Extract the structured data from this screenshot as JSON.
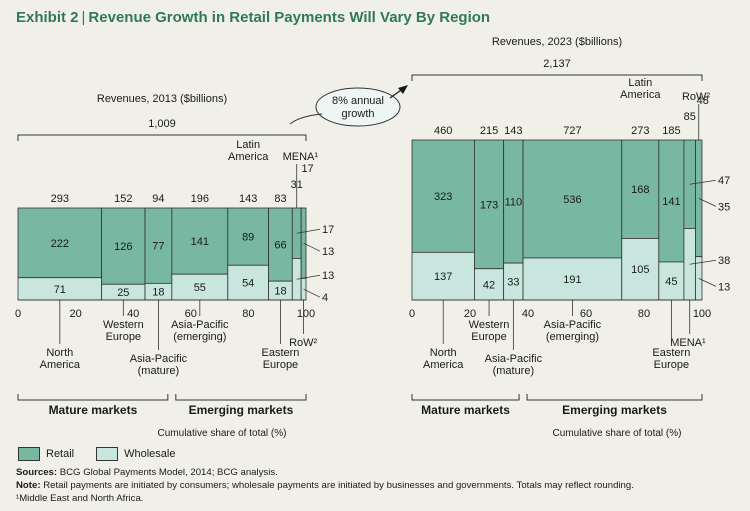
{
  "header": {
    "exhibit": "Exhibit 2",
    "separator": "|",
    "title": "Revenue Growth in Retail Payments Will Vary By Region"
  },
  "colors": {
    "retail": "#78b7a2",
    "wholesale": "#c8e6dd",
    "accent": "#2f7a55",
    "stroke": "#333333"
  },
  "growth_label": [
    "8% annual",
    "growth"
  ],
  "chart_data": [
    {
      "type": "marimekko",
      "title": "Revenues, 2013 ($billions)",
      "total": "1,009",
      "xlabel": "Cumulative share of total (%)",
      "xticks": [
        "0",
        "20",
        "40",
        "60",
        "80",
        "100"
      ],
      "xlim": [
        0,
        100
      ],
      "series": [
        {
          "name": "Retail"
        },
        {
          "name": "Wholesale"
        }
      ],
      "regions": [
        {
          "name": "North America",
          "lines": [
            "North",
            "America"
          ],
          "total": 293,
          "retail": 222,
          "wholesale": 71
        },
        {
          "name": "Western Europe",
          "lines": [
            "Western",
            "Europe"
          ],
          "total": 152,
          "retail": 126,
          "wholesale": 25
        },
        {
          "name": "Asia-Pacific (mature)",
          "lines": [
            "Asia-Pacific",
            "(mature)"
          ],
          "total": 94,
          "retail": 77,
          "wholesale": 18
        },
        {
          "name": "Asia-Pacific (emerging)",
          "lines": [
            "Asia-Pacific",
            "(emerging)"
          ],
          "total": 196,
          "retail": 141,
          "wholesale": 55
        },
        {
          "name": "Latin America",
          "lines": [
            "Latin",
            "America"
          ],
          "total": 143,
          "retail": 89,
          "wholesale": 54
        },
        {
          "name": "Eastern Europe",
          "lines": [
            "Eastern",
            "Europe"
          ],
          "total": 83,
          "retail": 66,
          "wholesale": 18
        },
        {
          "name": "MENA",
          "lines": [
            "MENA¹"
          ],
          "total": 31,
          "retail": 17,
          "wholesale": 13
        },
        {
          "name": "RoW",
          "lines": [
            "RoW²"
          ],
          "total": 17,
          "retail": 13,
          "wholesale": 4
        }
      ],
      "groups": [
        {
          "label": "Mature markets",
          "from": 0,
          "to": 3
        },
        {
          "label": "Emerging markets",
          "from": 3,
          "to": 8
        }
      ]
    },
    {
      "type": "marimekko",
      "title": "Revenues, 2023 ($billions)",
      "total": "2,137",
      "xlabel": "Cumulative share of total (%)",
      "xticks": [
        "0",
        "20",
        "40",
        "60",
        "80",
        "100"
      ],
      "xlim": [
        0,
        100
      ],
      "series": [
        {
          "name": "Retail"
        },
        {
          "name": "Wholesale"
        }
      ],
      "regions": [
        {
          "name": "North America",
          "lines": [
            "North",
            "America"
          ],
          "total": 460,
          "retail": 323,
          "wholesale": 137
        },
        {
          "name": "Western Europe",
          "lines": [
            "Western",
            "Europe"
          ],
          "total": 215,
          "retail": 173,
          "wholesale": 42
        },
        {
          "name": "Asia-Pacific (mature)",
          "lines": [
            "Asia-Pacific",
            "(mature)"
          ],
          "total": 143,
          "retail": 110,
          "wholesale": 33
        },
        {
          "name": "Asia-Pacific (emerging)",
          "lines": [
            "Asia-Pacific",
            "(emerging)"
          ],
          "total": 727,
          "retail": 536,
          "wholesale": 191
        },
        {
          "name": "Latin America",
          "lines": [
            "Latin",
            "America"
          ],
          "total": 273,
          "retail": 168,
          "wholesale": 105
        },
        {
          "name": "Eastern Europe",
          "lines": [
            "Eastern",
            "Europe"
          ],
          "total": 185,
          "retail": 141,
          "wholesale": 45
        },
        {
          "name": "MENA",
          "lines": [
            "MENA¹"
          ],
          "total": 85,
          "retail": 47,
          "wholesale": 38
        },
        {
          "name": "RoW",
          "lines": [
            "RoW²"
          ],
          "total": 48,
          "retail": 35,
          "wholesale": 13
        }
      ],
      "groups": [
        {
          "label": "Mature markets",
          "from": 0,
          "to": 3
        },
        {
          "label": "Emerging markets",
          "from": 3,
          "to": 8
        }
      ]
    }
  ],
  "legend": {
    "retail": "Retail",
    "wholesale": "Wholesale"
  },
  "footnotes": {
    "sources_label": "Sources:",
    "sources_text": "BCG Global Payments Model, 2014; BCG analysis.",
    "note_label": "Note:",
    "note_text": "Retail payments are initiated by consumers; wholesale payments are initiated by businesses and governments. Totals may reflect rounding.",
    "fn1": "¹Middle East and North Africa."
  }
}
